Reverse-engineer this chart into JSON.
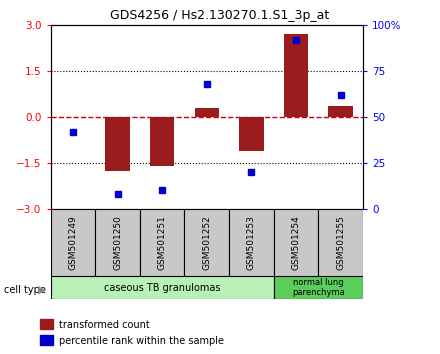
{
  "title": "GDS4256 / Hs2.130270.1.S1_3p_at",
  "samples": [
    "GSM501249",
    "GSM501250",
    "GSM501251",
    "GSM501252",
    "GSM501253",
    "GSM501254",
    "GSM501255"
  ],
  "transformed_count": [
    0.0,
    -1.75,
    -1.6,
    0.3,
    -1.1,
    2.7,
    0.35
  ],
  "percentile_rank": [
    42,
    8,
    10,
    68,
    20,
    92,
    62
  ],
  "ylim_left": [
    -3,
    3
  ],
  "ylim_right": [
    0,
    100
  ],
  "yticks_left": [
    -3,
    -1.5,
    0,
    1.5,
    3
  ],
  "yticks_right": [
    0,
    25,
    50,
    75,
    100
  ],
  "yticklabels_right": [
    "0",
    "25",
    "50",
    "75",
    "100%"
  ],
  "bar_color": "#9B1C1C",
  "dot_color": "#0000CC",
  "dashed_line_color": "#CC0000",
  "grid_color": "black",
  "group1_label": "caseous TB granulomas",
  "group2_label": "normal lung\nparenchyma",
  "group1_indices": [
    0,
    1,
    2,
    3,
    4
  ],
  "group2_indices": [
    5,
    6
  ],
  "group1_color": "#b8f0b8",
  "group2_color": "#5ccc5c",
  "cell_type_label": "cell type",
  "legend_bar_label": "transformed count",
  "legend_dot_label": "percentile rank within the sample",
  "bar_width": 0.55,
  "sample_box_color": "#c8c8c8"
}
